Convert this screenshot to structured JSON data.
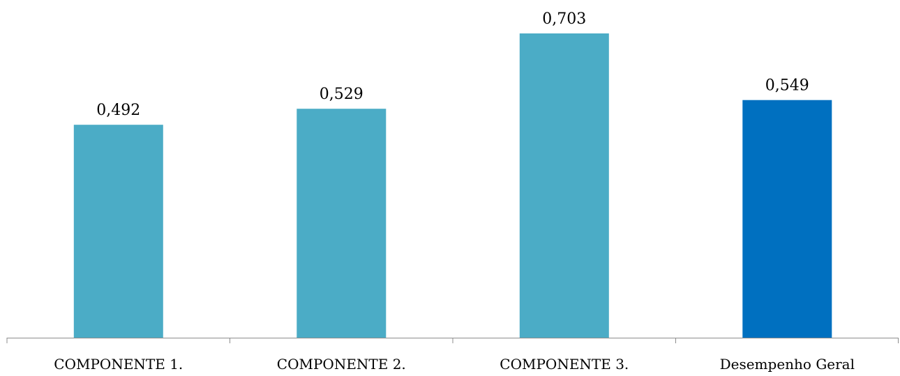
{
  "chart_data": {
    "type": "bar",
    "title": "",
    "xlabel": "",
    "ylabel": "",
    "categories": [
      "COMPONENTE 1.",
      "COMPONENTE 2.",
      "COMPONENTE 3.",
      "Desempenho Geral"
    ],
    "values": [
      0.492,
      0.529,
      0.703,
      0.549
    ],
    "value_labels": [
      "0,492",
      "0,529",
      "0,703",
      "0,549"
    ],
    "bar_colors": [
      "#4bacc6",
      "#4bacc6",
      "#4bacc6",
      "#0070c0"
    ],
    "ylim": [
      0,
      0.703
    ],
    "grid": false,
    "legend": "none"
  }
}
